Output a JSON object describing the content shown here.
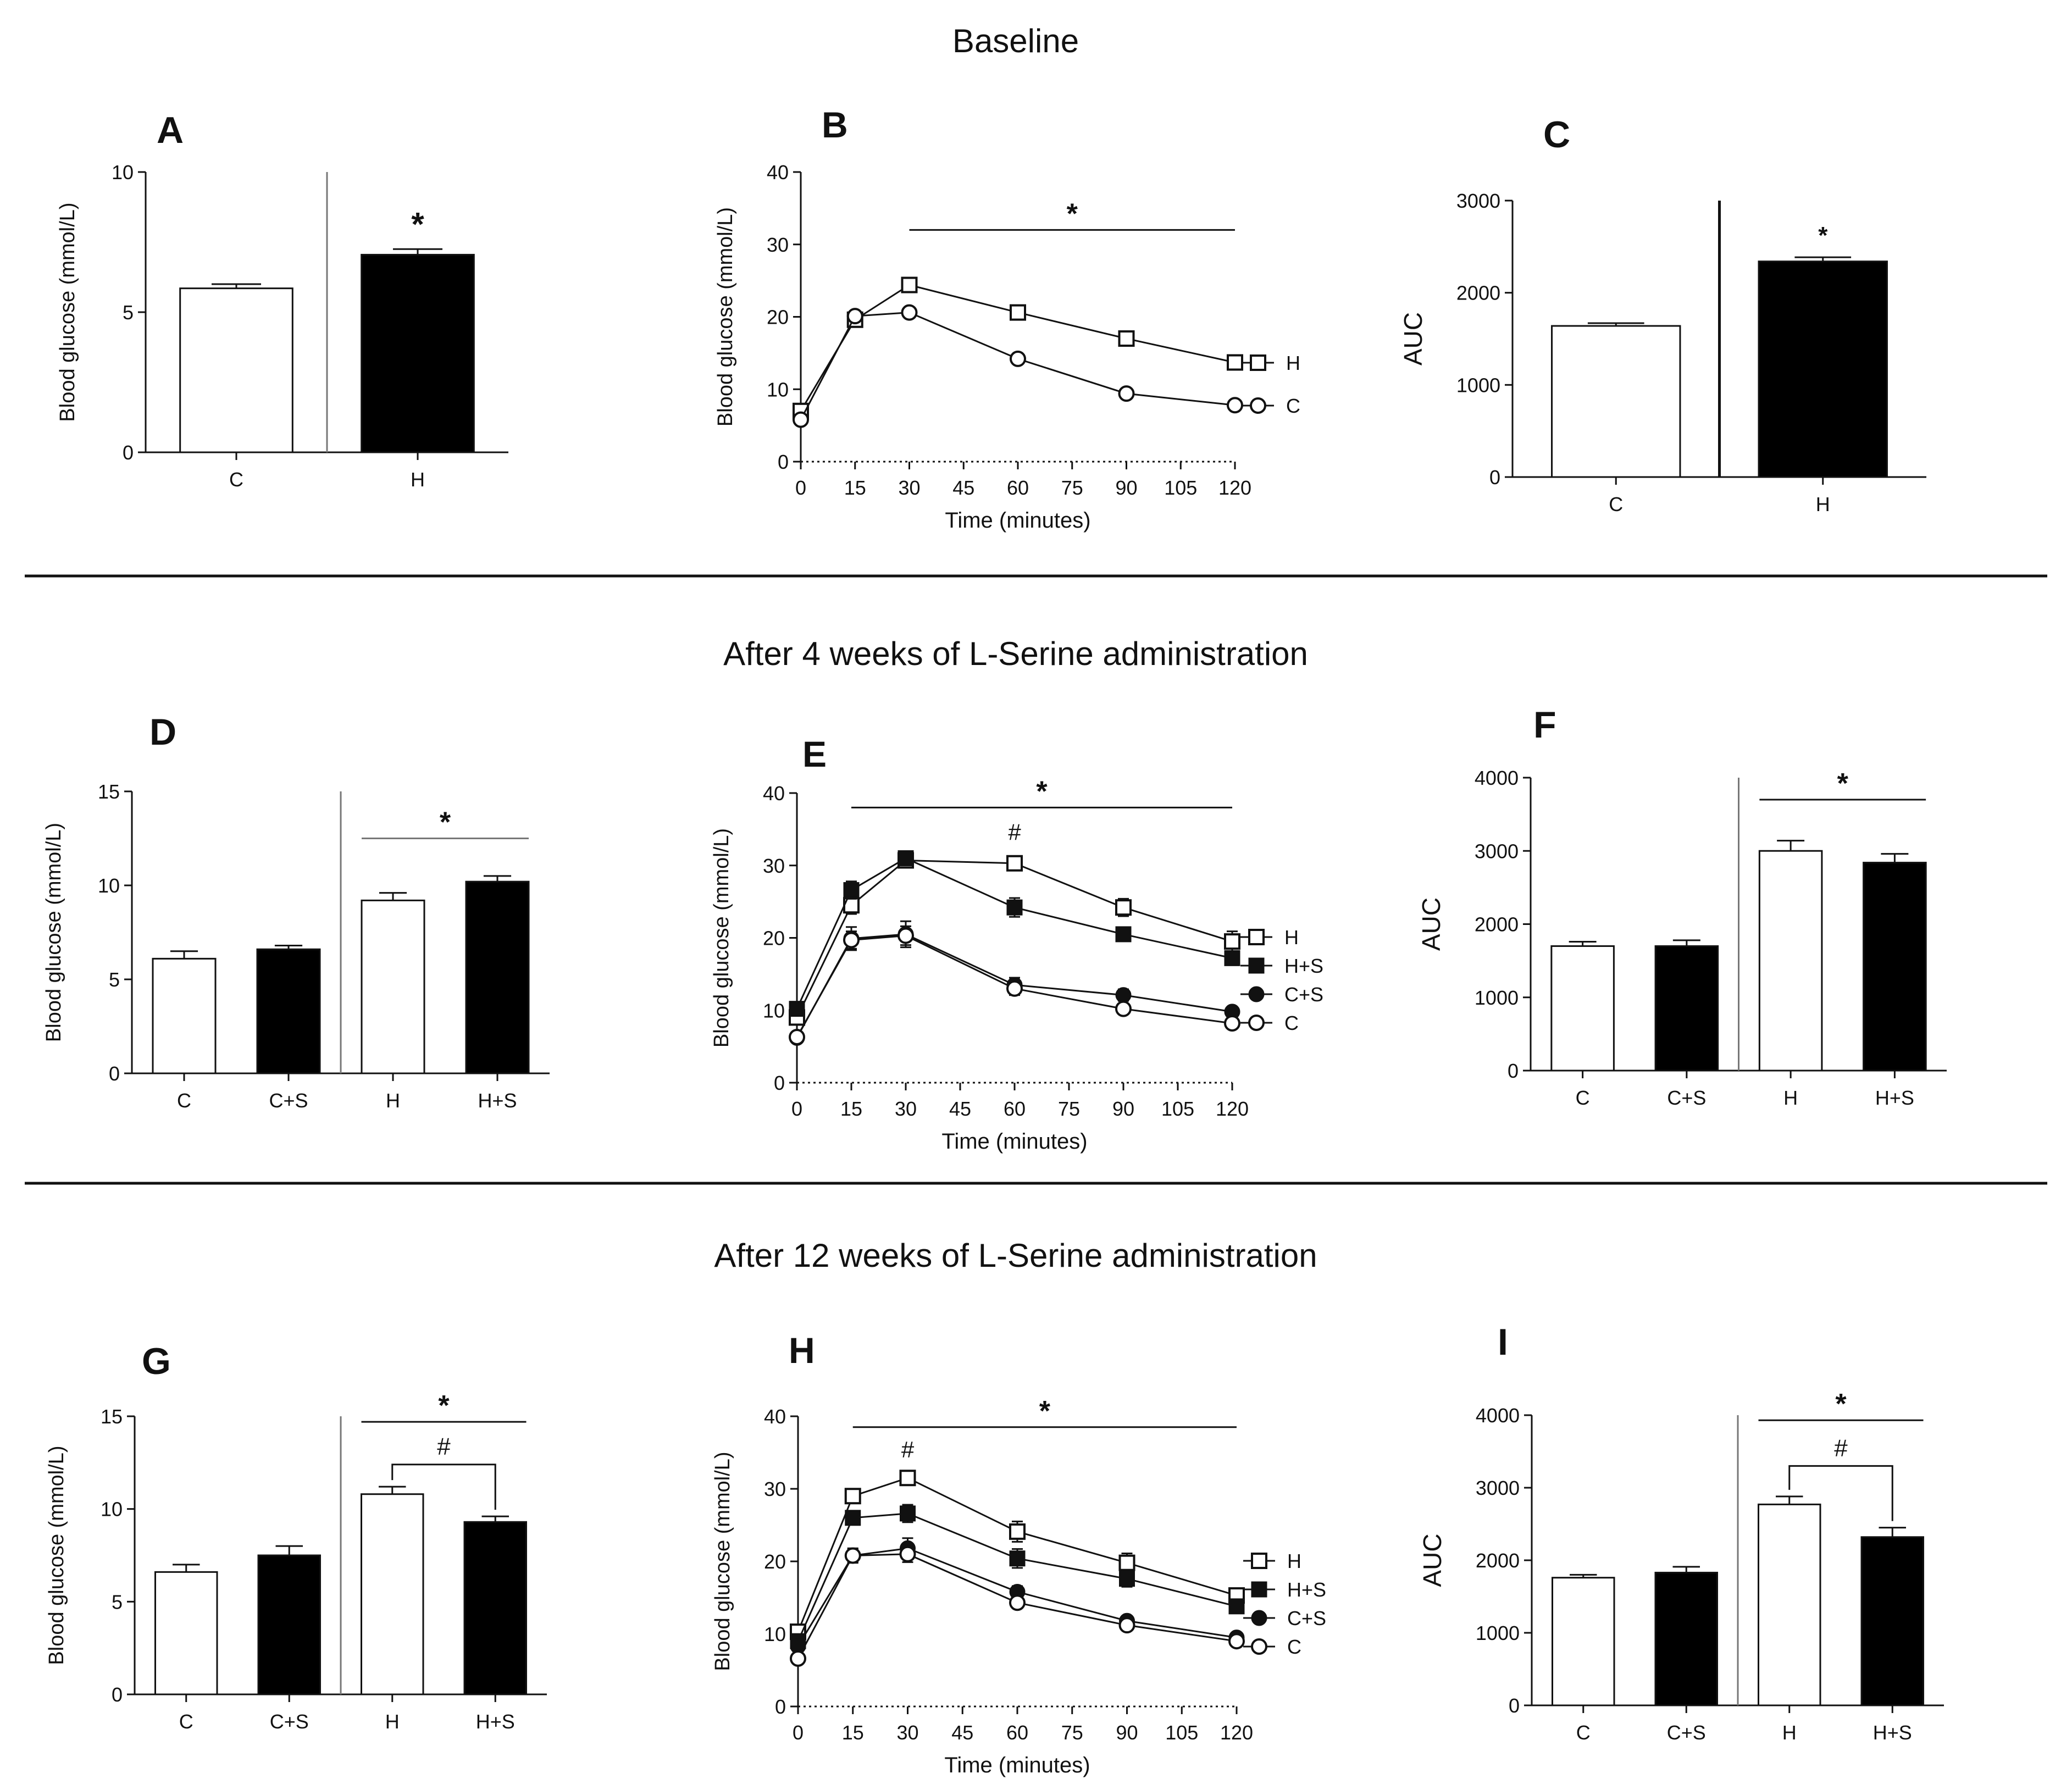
{
  "sections": [
    {
      "title": "Baseline"
    },
    {
      "title": "After 4 weeks of L-Serine administration"
    },
    {
      "title": "After 12 weeks of L-Serine administration"
    }
  ],
  "chart_data": [
    {
      "id": "A",
      "type": "bar",
      "panel_label": "A",
      "ylabel": "Blood glucose (mmol/L)",
      "ylim": [
        0,
        10
      ],
      "yticks": [
        0,
        5,
        10
      ],
      "categories": [
        "C",
        "H"
      ],
      "values": [
        5.85,
        7.05
      ],
      "errors": [
        0.15,
        0.2
      ],
      "fills": [
        "white",
        "black"
      ],
      "divider_after": 1,
      "annotations": [
        {
          "type": "star",
          "text": "*",
          "over": 1
        }
      ]
    },
    {
      "id": "B",
      "type": "line",
      "panel_label": "B",
      "xlabel": "Time (minutes)",
      "ylabel": "Blood glucose (mmol/L)",
      "xlim": [
        0,
        120
      ],
      "xticks": [
        0,
        15,
        30,
        45,
        60,
        75,
        90,
        105,
        120
      ],
      "ylim": [
        0,
        40
      ],
      "yticks": [
        0,
        10,
        20,
        30,
        40
      ],
      "x": [
        0,
        15,
        30,
        60,
        90,
        120
      ],
      "series": [
        {
          "name": "H",
          "marker": "open-square",
          "values": [
            7.0,
            19.6,
            24.4,
            20.6,
            17.0,
            13.7
          ],
          "errors": [
            0.4,
            1.0,
            0.9,
            0.7,
            0.5,
            0.6
          ]
        },
        {
          "name": "C",
          "marker": "open-circle",
          "values": [
            5.8,
            20.1,
            20.6,
            14.2,
            9.4,
            7.8
          ],
          "errors": [
            0.3,
            0.5,
            0.5,
            0.4,
            0.3,
            0.3
          ]
        }
      ],
      "sig_lines": [
        {
          "text": "*",
          "from": 30,
          "to": 120,
          "y": 32
        }
      ]
    },
    {
      "id": "C",
      "type": "bar",
      "panel_label": "C",
      "ylabel": "AUC",
      "ylim": [
        0,
        3000
      ],
      "yticks": [
        0,
        1000,
        2000,
        3000
      ],
      "categories": [
        "C",
        "H"
      ],
      "values": [
        1640,
        2340
      ],
      "errors": [
        30,
        45
      ],
      "fills": [
        "white",
        "black"
      ],
      "divider_after": 1,
      "annotations": [
        {
          "type": "star",
          "text": "*",
          "over": 1
        }
      ]
    },
    {
      "id": "D",
      "type": "bar",
      "panel_label": "D",
      "ylabel": "Blood glucose (mmol/L)",
      "ylim": [
        0,
        15
      ],
      "yticks": [
        0,
        5,
        10,
        15
      ],
      "categories": [
        "C",
        "C+S",
        "H",
        "H+S"
      ],
      "values": [
        6.1,
        6.6,
        9.2,
        10.2
      ],
      "errors": [
        0.4,
        0.2,
        0.4,
        0.3
      ],
      "fills": [
        "white",
        "black",
        "white",
        "black"
      ],
      "divider_after": 2,
      "annotations": [
        {
          "type": "line",
          "text": "*",
          "from": 2,
          "to": 3,
          "y": 12.5
        }
      ]
    },
    {
      "id": "E",
      "type": "line",
      "panel_label": "E",
      "xlabel": "Time (minutes)",
      "ylabel": "Blood glucose (mmol/L)",
      "xlim": [
        0,
        120
      ],
      "xticks": [
        0,
        15,
        30,
        45,
        60,
        75,
        90,
        105,
        120
      ],
      "ylim": [
        0,
        40
      ],
      "yticks": [
        0,
        10,
        20,
        30,
        40
      ],
      "x": [
        0,
        15,
        30,
        60,
        90,
        120
      ],
      "series": [
        {
          "name": "H",
          "marker": "open-square",
          "values": [
            9.0,
            24.5,
            30.7,
            30.3,
            24.2,
            19.5
          ],
          "errors": [
            0.5,
            1.2,
            0.8,
            0.9,
            1.2,
            1.4
          ]
        },
        {
          "name": "H+S",
          "marker": "filled-square",
          "values": [
            10.2,
            26.6,
            31.0,
            24.2,
            20.5,
            17.2
          ],
          "errors": [
            0.5,
            1.2,
            0.8,
            1.3,
            0.8,
            0.9
          ]
        },
        {
          "name": "C+S",
          "marker": "filled-circle",
          "values": [
            6.2,
            19.9,
            20.5,
            13.5,
            12.1,
            9.8
          ],
          "errors": [
            0.4,
            1.6,
            1.8,
            1.0,
            0.8,
            0.6
          ]
        },
        {
          "name": "C",
          "marker": "open-circle",
          "values": [
            6.3,
            19.7,
            20.3,
            13.0,
            10.2,
            8.2
          ],
          "errors": [
            0.4,
            1.2,
            1.3,
            0.9,
            0.6,
            0.5
          ]
        }
      ],
      "sig_lines": [
        {
          "text": "*",
          "from": 15,
          "to": 120,
          "y": 38
        }
      ],
      "point_annotations": [
        {
          "text": "#",
          "x": 60,
          "y": 33.5
        }
      ]
    },
    {
      "id": "F",
      "type": "bar",
      "panel_label": "F",
      "ylabel": "AUC",
      "ylim": [
        0,
        4000
      ],
      "yticks": [
        0,
        1000,
        2000,
        3000,
        4000
      ],
      "categories": [
        "C",
        "C+S",
        "H",
        "H+S"
      ],
      "values": [
        1700,
        1700,
        3000,
        2840
      ],
      "errors": [
        60,
        80,
        140,
        120
      ],
      "fills": [
        "white",
        "black",
        "white",
        "black"
      ],
      "divider_after": 2,
      "annotations": [
        {
          "type": "line",
          "text": "*",
          "from": 2,
          "to": 3,
          "y": 3700
        }
      ]
    },
    {
      "id": "G",
      "type": "bar",
      "panel_label": "G",
      "ylabel": "Blood glucose (mmol/L)",
      "ylim": [
        0,
        15
      ],
      "yticks": [
        0,
        5,
        10,
        15
      ],
      "categories": [
        "C",
        "C+S",
        "H",
        "H+S"
      ],
      "values": [
        6.6,
        7.5,
        10.8,
        9.3
      ],
      "errors": [
        0.4,
        0.5,
        0.4,
        0.3
      ],
      "fills": [
        "white",
        "black",
        "white",
        "black"
      ],
      "divider_after": 2,
      "annotations": [
        {
          "type": "line",
          "text": "*",
          "from": 2,
          "to": 3,
          "y": 14.7
        },
        {
          "type": "bracket",
          "text": "#",
          "from": 2,
          "to": 3,
          "y": 12.4
        }
      ]
    },
    {
      "id": "H",
      "type": "line",
      "panel_label": "H",
      "xlabel": "Time (minutes)",
      "ylabel": "Blood glucose (mmol/L)",
      "xlim": [
        0,
        120
      ],
      "xticks": [
        0,
        15,
        30,
        45,
        60,
        75,
        90,
        105,
        120
      ],
      "ylim": [
        0,
        40
      ],
      "yticks": [
        0,
        10,
        20,
        30,
        40
      ],
      "x": [
        0,
        15,
        30,
        60,
        90,
        120
      ],
      "series": [
        {
          "name": "H",
          "marker": "open-square",
          "values": [
            10.3,
            29.0,
            31.5,
            24.1,
            19.8,
            15.3
          ],
          "errors": [
            0.5,
            0.7,
            0.6,
            1.4,
            1.3,
            0.8
          ]
        },
        {
          "name": "H+S",
          "marker": "filled-square",
          "values": [
            9.0,
            26.0,
            26.6,
            20.4,
            17.6,
            13.8
          ],
          "errors": [
            0.5,
            0.6,
            1.2,
            1.3,
            1.1,
            0.7
          ]
        },
        {
          "name": "C+S",
          "marker": "filled-circle",
          "values": [
            8.3,
            20.8,
            21.8,
            15.8,
            11.8,
            9.5
          ],
          "errors": [
            0.5,
            1.0,
            1.4,
            0.8,
            0.5,
            0.4
          ]
        },
        {
          "name": "C",
          "marker": "open-circle",
          "values": [
            6.6,
            20.8,
            21.0,
            14.3,
            11.2,
            9.0
          ],
          "errors": [
            0.4,
            0.9,
            1.1,
            0.6,
            0.4,
            0.4
          ]
        }
      ],
      "sig_lines": [
        {
          "text": "*",
          "from": 15,
          "to": 120,
          "y": 38.5
        }
      ],
      "point_annotations": [
        {
          "text": "#",
          "x": 30,
          "y": 34.3
        }
      ]
    },
    {
      "id": "I",
      "type": "bar",
      "panel_label": "I",
      "ylabel": "AUC",
      "ylim": [
        0,
        4000
      ],
      "yticks": [
        0,
        1000,
        2000,
        3000,
        4000
      ],
      "categories": [
        "C",
        "C+S",
        "H",
        "H+S"
      ],
      "values": [
        1760,
        1830,
        2770,
        2320
      ],
      "errors": [
        40,
        80,
        110,
        130
      ],
      "fills": [
        "white",
        "black",
        "white",
        "black"
      ],
      "divider_after": 2,
      "annotations": [
        {
          "type": "line",
          "text": "*",
          "from": 2,
          "to": 3,
          "y": 3930
        },
        {
          "type": "bracket",
          "text": "#",
          "from": 2,
          "to": 3,
          "y": 3300
        }
      ]
    }
  ]
}
